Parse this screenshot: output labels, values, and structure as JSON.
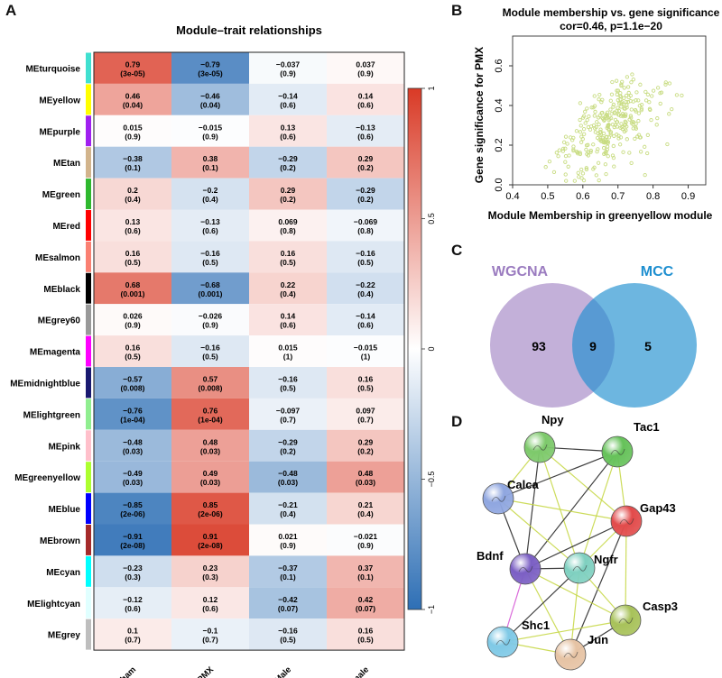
{
  "panels": {
    "a": "A",
    "b": "B",
    "c": "C",
    "d": "D"
  },
  "chart_data": [
    {
      "type": "heatmap",
      "title": "Module–trait relationships",
      "columns": [
        "Sham",
        "PMX",
        "Male",
        "Female"
      ],
      "rows": [
        {
          "name": "MEturquoise",
          "color": "#40E0D0",
          "cells": [
            [
              "0.79",
              "(3e-05)"
            ],
            [
              "−0.79",
              "(3e-05)"
            ],
            [
              "−0.037",
              "(0.9)"
            ],
            [
              "0.037",
              "(0.9)"
            ]
          ],
          "values": [
            0.79,
            -0.79,
            -0.037,
            0.037
          ]
        },
        {
          "name": "MEyellow",
          "color": "#FFFF00",
          "cells": [
            [
              "0.46",
              "(0.04)"
            ],
            [
              "−0.46",
              "(0.04)"
            ],
            [
              "−0.14",
              "(0.6)"
            ],
            [
              "0.14",
              "(0.6)"
            ]
          ],
          "values": [
            0.46,
            -0.46,
            -0.14,
            0.14
          ]
        },
        {
          "name": "MEpurple",
          "color": "#A020F0",
          "cells": [
            [
              "0.015",
              "(0.9)"
            ],
            [
              "−0.015",
              "(0.9)"
            ],
            [
              "0.13",
              "(0.6)"
            ],
            [
              "−0.13",
              "(0.6)"
            ]
          ],
          "values": [
            0.015,
            -0.015,
            0.13,
            -0.13
          ]
        },
        {
          "name": "MEtan",
          "color": "#D2B48C",
          "cells": [
            [
              "−0.38",
              "(0.1)"
            ],
            [
              "0.38",
              "(0.1)"
            ],
            [
              "−0.29",
              "(0.2)"
            ],
            [
              "0.29",
              "(0.2)"
            ]
          ],
          "values": [
            -0.38,
            0.38,
            -0.29,
            0.29
          ]
        },
        {
          "name": "MEgreen",
          "color": "#2EB82E",
          "cells": [
            [
              "0.2",
              "(0.4)"
            ],
            [
              "−0.2",
              "(0.4)"
            ],
            [
              "0.29",
              "(0.2)"
            ],
            [
              "−0.29",
              "(0.2)"
            ]
          ],
          "values": [
            0.2,
            -0.2,
            0.29,
            -0.29
          ]
        },
        {
          "name": "MEred",
          "color": "#FF0000",
          "cells": [
            [
              "0.13",
              "(0.6)"
            ],
            [
              "−0.13",
              "(0.6)"
            ],
            [
              "0.069",
              "(0.8)"
            ],
            [
              "−0.069",
              "(0.8)"
            ]
          ],
          "values": [
            0.13,
            -0.13,
            0.069,
            -0.069
          ]
        },
        {
          "name": "MEsalmon",
          "color": "#FA8072",
          "cells": [
            [
              "0.16",
              "(0.5)"
            ],
            [
              "−0.16",
              "(0.5)"
            ],
            [
              "0.16",
              "(0.5)"
            ],
            [
              "−0.16",
              "(0.5)"
            ]
          ],
          "values": [
            0.16,
            -0.16,
            0.16,
            -0.16
          ]
        },
        {
          "name": "MEblack",
          "color": "#000000",
          "cells": [
            [
              "0.68",
              "(0.001)"
            ],
            [
              "−0.68",
              "(0.001)"
            ],
            [
              "0.22",
              "(0.4)"
            ],
            [
              "−0.22",
              "(0.4)"
            ]
          ],
          "values": [
            0.68,
            -0.68,
            0.22,
            -0.22
          ]
        },
        {
          "name": "MEgrey60",
          "color": "#999999",
          "cells": [
            [
              "0.026",
              "(0.9)"
            ],
            [
              "−0.026",
              "(0.9)"
            ],
            [
              "0.14",
              "(0.6)"
            ],
            [
              "−0.14",
              "(0.6)"
            ]
          ],
          "values": [
            0.026,
            -0.026,
            0.14,
            -0.14
          ]
        },
        {
          "name": "MEmagenta",
          "color": "#FF00FF",
          "cells": [
            [
              "0.16",
              "(0.5)"
            ],
            [
              "−0.16",
              "(0.5)"
            ],
            [
              "0.015",
              "(1)"
            ],
            [
              "−0.015",
              "(1)"
            ]
          ],
          "values": [
            0.16,
            -0.16,
            0.015,
            -0.015
          ]
        },
        {
          "name": "MEmidnightblue",
          "color": "#191970",
          "cells": [
            [
              "−0.57",
              "(0.008)"
            ],
            [
              "0.57",
              "(0.008)"
            ],
            [
              "−0.16",
              "(0.5)"
            ],
            [
              "0.16",
              "(0.5)"
            ]
          ],
          "values": [
            -0.57,
            0.57,
            -0.16,
            0.16
          ]
        },
        {
          "name": "MElightgreen",
          "color": "#90EE90",
          "cells": [
            [
              "−0.76",
              "(1e-04)"
            ],
            [
              "0.76",
              "(1e-04)"
            ],
            [
              "−0.097",
              "(0.7)"
            ],
            [
              "0.097",
              "(0.7)"
            ]
          ],
          "values": [
            -0.76,
            0.76,
            -0.097,
            0.097
          ]
        },
        {
          "name": "MEpink",
          "color": "#FFC0CB",
          "cells": [
            [
              "−0.48",
              "(0.03)"
            ],
            [
              "0.48",
              "(0.03)"
            ],
            [
              "−0.29",
              "(0.2)"
            ],
            [
              "0.29",
              "(0.2)"
            ]
          ],
          "values": [
            -0.48,
            0.48,
            -0.29,
            0.29
          ]
        },
        {
          "name": "MEgreenyellow",
          "color": "#ADFF2F",
          "cells": [
            [
              "−0.49",
              "(0.03)"
            ],
            [
              "0.49",
              "(0.03)"
            ],
            [
              "−0.48",
              "(0.03)"
            ],
            [
              "0.48",
              "(0.03)"
            ]
          ],
          "values": [
            -0.49,
            0.49,
            -0.48,
            0.48
          ]
        },
        {
          "name": "MEblue",
          "color": "#0000FF",
          "cells": [
            [
              "−0.85",
              "(2e-06)"
            ],
            [
              "0.85",
              "(2e-06)"
            ],
            [
              "−0.21",
              "(0.4)"
            ],
            [
              "0.21",
              "(0.4)"
            ]
          ],
          "values": [
            -0.85,
            0.85,
            -0.21,
            0.21
          ]
        },
        {
          "name": "MEbrown",
          "color": "#A52A2A",
          "cells": [
            [
              "−0.91",
              "(2e-08)"
            ],
            [
              "0.91",
              "(2e-08)"
            ],
            [
              "0.021",
              "(0.9)"
            ],
            [
              "−0.021",
              "(0.9)"
            ]
          ],
          "values": [
            -0.91,
            0.91,
            0.021,
            -0.021
          ]
        },
        {
          "name": "MEcyan",
          "color": "#00FFFF",
          "cells": [
            [
              "−0.23",
              "(0.3)"
            ],
            [
              "0.23",
              "(0.3)"
            ],
            [
              "−0.37",
              "(0.1)"
            ],
            [
              "0.37",
              "(0.1)"
            ]
          ],
          "values": [
            -0.23,
            0.23,
            -0.37,
            0.37
          ]
        },
        {
          "name": "MElightcyan",
          "color": "#E0FFFF",
          "cells": [
            [
              "−0.12",
              "(0.6)"
            ],
            [
              "0.12",
              "(0.6)"
            ],
            [
              "−0.42",
              "(0.07)"
            ],
            [
              "0.42",
              "(0.07)"
            ]
          ],
          "values": [
            -0.12,
            0.12,
            -0.42,
            0.42
          ]
        },
        {
          "name": "MEgrey",
          "color": "#BEBEBE",
          "cells": [
            [
              "0.1",
              "(0.7)"
            ],
            [
              "−0.1",
              "(0.7)"
            ],
            [
              "−0.16",
              "(0.5)"
            ],
            [
              "0.16",
              "(0.5)"
            ]
          ],
          "values": [
            0.1,
            -0.1,
            -0.16,
            0.16
          ]
        }
      ],
      "colorbar": {
        "min": -1,
        "max": 1,
        "ticks": [
          "1",
          "0.5",
          "0",
          "−0.5",
          "−1"
        ],
        "tick_values": [
          1,
          0.5,
          0,
          -0.5,
          -1
        ],
        "low_color": "#2E6FB5",
        "mid_color": "#FFFFFF",
        "high_color": "#D93A26"
      }
    },
    {
      "type": "scatter",
      "title": "Module membership vs. gene significance",
      "subtitle": "cor=0.46, p=1.1e−20",
      "xlabel": "Module Membership in greenyellow module",
      "ylabel": "Gene significance for  PMX",
      "xlim": [
        0.4,
        0.95
      ],
      "ylim": [
        0.0,
        0.75
      ],
      "xticks": [
        "0.4",
        "0.5",
        "0.6",
        "0.7",
        "0.8",
        "0.9"
      ],
      "xtick_values": [
        0.4,
        0.5,
        0.6,
        0.7,
        0.8,
        0.9
      ],
      "yticks": [
        "0.0",
        "0.2",
        "0.4",
        "0.6"
      ],
      "ytick_values": [
        0,
        0.2,
        0.4,
        0.6
      ],
      "point_color": "#C8DC82",
      "n_points": 300
    },
    {
      "type": "venn",
      "sets": [
        {
          "label": "WGCNA",
          "color": "#9B7CC0",
          "only": "93"
        },
        {
          "label": "MCC",
          "color": "#1E8FD0",
          "only": "5"
        }
      ],
      "intersection": "9"
    }
  ],
  "network": {
    "nodes": [
      {
        "id": "Npy",
        "label": "Npy",
        "color": "#7DC96B"
      },
      {
        "id": "Tac1",
        "label": "Tac1",
        "color": "#66C25A"
      },
      {
        "id": "Calca",
        "label": "Calca",
        "color": "#8FA6E0"
      },
      {
        "id": "Gap43",
        "label": "Gap43",
        "color": "#E24B4B"
      },
      {
        "id": "Bdnf",
        "label": "Bdnf",
        "color": "#7B5FC4"
      },
      {
        "id": "Ngfr",
        "label": "Ngfr",
        "color": "#7FD0C0"
      },
      {
        "id": "Casp3",
        "label": "Casp3",
        "color": "#A8C25A"
      },
      {
        "id": "Shc1",
        "label": "Shc1",
        "color": "#7FC9E6"
      },
      {
        "id": "Jun",
        "label": "Jun",
        "color": "#E6C3A4"
      }
    ],
    "edges": [
      [
        "Npy",
        "Tac1",
        "#2a2a2a"
      ],
      [
        "Npy",
        "Calca",
        "#c8d84a"
      ],
      [
        "Npy",
        "Gap43",
        "#c8d84a"
      ],
      [
        "Npy",
        "Bdnf",
        "#2a2a2a"
      ],
      [
        "Npy",
        "Ngfr",
        "#c8d84a"
      ],
      [
        "Tac1",
        "Calca",
        "#2a2a2a"
      ],
      [
        "Tac1",
        "Gap43",
        "#c8d84a"
      ],
      [
        "Tac1",
        "Bdnf",
        "#2a2a2a"
      ],
      [
        "Tac1",
        "Ngfr",
        "#c8d84a"
      ],
      [
        "Calca",
        "Gap43",
        "#c8d84a"
      ],
      [
        "Calca",
        "Bdnf",
        "#2a2a2a"
      ],
      [
        "Calca",
        "Ngfr",
        "#c8d84a"
      ],
      [
        "Gap43",
        "Bdnf",
        "#2a2a2a"
      ],
      [
        "Gap43",
        "Ngfr",
        "#c8d84a"
      ],
      [
        "Gap43",
        "Jun",
        "#2a2a2a"
      ],
      [
        "Gap43",
        "Casp3",
        "#c8d84a"
      ],
      [
        "Bdnf",
        "Ngfr",
        "#2a2a2a"
      ],
      [
        "Bdnf",
        "Shc1",
        "#d65ad6"
      ],
      [
        "Bdnf",
        "Casp3",
        "#c8d84a"
      ],
      [
        "Bdnf",
        "Jun",
        "#c8d84a"
      ],
      [
        "Ngfr",
        "Shc1",
        "#2a2a2a"
      ],
      [
        "Ngfr",
        "Casp3",
        "#c8d84a"
      ],
      [
        "Ngfr",
        "Jun",
        "#c8d84a"
      ],
      [
        "Shc1",
        "Jun",
        "#c8d84a"
      ],
      [
        "Shc1",
        "Casp3",
        "#c8d84a"
      ],
      [
        "Casp3",
        "Jun",
        "#2a2a2a"
      ]
    ]
  }
}
